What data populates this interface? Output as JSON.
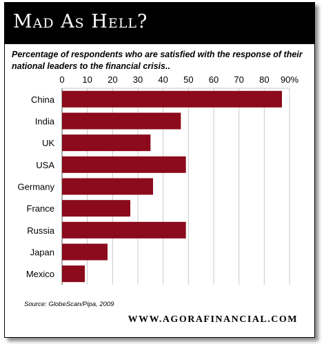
{
  "header": {
    "title": "Mad As Hell?"
  },
  "subtitle": "Percentage of respondents who are satisfied with the response of their national leaders to the financial crisis..",
  "source": "Source: GlobeScan/Pipa, 2009",
  "website": "WWW.AGORAFINANCIAL.COM",
  "colors": {
    "bar": "#8B0A1B",
    "highlight_label": "#5F7FA6",
    "frame": "#000000"
  },
  "chart_data": {
    "type": "bar",
    "orientation": "horizontal",
    "categories": [
      "China",
      "India",
      "UK",
      "USA",
      "Germany",
      "France",
      "Russia",
      "Japan",
      "Mexico"
    ],
    "values": [
      87,
      47,
      35,
      49,
      36,
      27,
      49,
      18,
      9
    ],
    "highlight": "USA",
    "xlim": [
      0,
      90
    ],
    "ticks": [
      "0",
      "10",
      "20",
      "30",
      "40",
      "50",
      "60",
      "70",
      "80",
      "90%"
    ],
    "grid": true
  }
}
